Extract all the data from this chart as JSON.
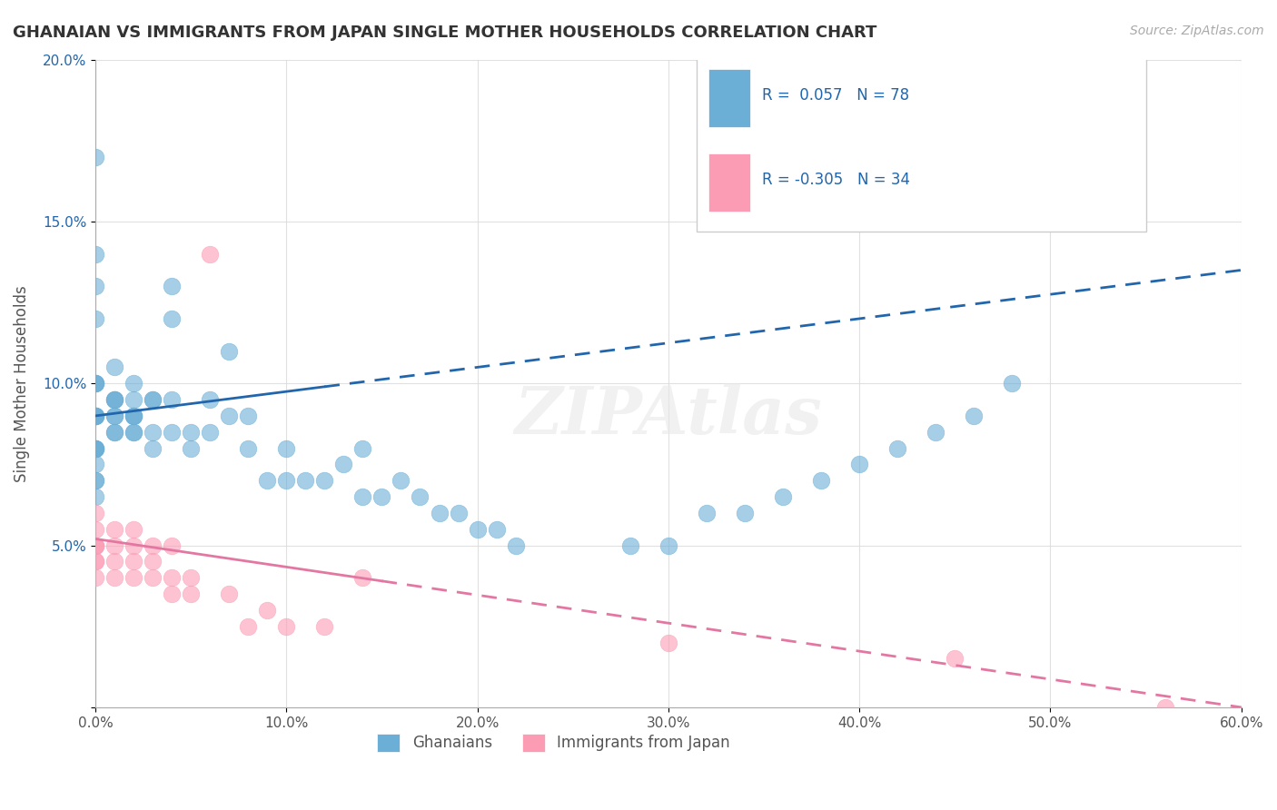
{
  "title": "GHANAIAN VS IMMIGRANTS FROM JAPAN SINGLE MOTHER HOUSEHOLDS CORRELATION CHART",
  "source": "Source: ZipAtlas.com",
  "xlabel": "",
  "ylabel": "Single Mother Households",
  "legend_labels": [
    "Ghanaians",
    "Immigrants from Japan"
  ],
  "blue_R": 0.057,
  "blue_N": 78,
  "pink_R": -0.305,
  "pink_N": 34,
  "xlim": [
    0.0,
    0.6
  ],
  "ylim": [
    0.0,
    0.2
  ],
  "xticks": [
    0.0,
    0.1,
    0.2,
    0.3,
    0.4,
    0.5,
    0.6
  ],
  "yticks": [
    0.0,
    0.05,
    0.1,
    0.15,
    0.2
  ],
  "xticklabels": [
    "0.0%",
    "10.0%",
    "20.0%",
    "30.0%",
    "40.0%",
    "50.0%",
    "60.0%"
  ],
  "yticklabels": [
    "",
    "5.0%",
    "10.0%",
    "15.0%",
    "20.0%"
  ],
  "blue_color": "#6baed6",
  "pink_color": "#fc9cb4",
  "blue_line_color": "#2166ac",
  "pink_line_color": "#e377a2",
  "background_color": "#ffffff",
  "grid_color": "#dddddd",
  "title_color": "#333333",
  "blue_scatter_x": [
    0.0,
    0.0,
    0.0,
    0.0,
    0.0,
    0.0,
    0.0,
    0.0,
    0.0,
    0.0,
    0.0,
    0.0,
    0.0,
    0.0,
    0.0,
    0.0,
    0.0,
    0.0,
    0.0,
    0.0,
    0.01,
    0.01,
    0.01,
    0.01,
    0.01,
    0.01,
    0.01,
    0.01,
    0.02,
    0.02,
    0.02,
    0.02,
    0.02,
    0.02,
    0.02,
    0.03,
    0.03,
    0.03,
    0.03,
    0.04,
    0.04,
    0.04,
    0.04,
    0.05,
    0.05,
    0.06,
    0.06,
    0.07,
    0.07,
    0.08,
    0.08,
    0.09,
    0.1,
    0.1,
    0.11,
    0.12,
    0.13,
    0.14,
    0.14,
    0.15,
    0.16,
    0.17,
    0.18,
    0.19,
    0.2,
    0.21,
    0.22,
    0.28,
    0.3,
    0.32,
    0.34,
    0.36,
    0.38,
    0.4,
    0.42,
    0.44,
    0.46,
    0.48
  ],
  "blue_scatter_y": [
    0.17,
    0.13,
    0.14,
    0.12,
    0.09,
    0.1,
    0.09,
    0.09,
    0.08,
    0.08,
    0.09,
    0.1,
    0.1,
    0.09,
    0.08,
    0.08,
    0.07,
    0.075,
    0.07,
    0.065,
    0.095,
    0.105,
    0.095,
    0.085,
    0.09,
    0.09,
    0.095,
    0.085,
    0.09,
    0.085,
    0.09,
    0.085,
    0.1,
    0.09,
    0.095,
    0.095,
    0.095,
    0.08,
    0.085,
    0.13,
    0.12,
    0.095,
    0.085,
    0.085,
    0.08,
    0.095,
    0.085,
    0.11,
    0.09,
    0.09,
    0.08,
    0.07,
    0.08,
    0.07,
    0.07,
    0.07,
    0.075,
    0.08,
    0.065,
    0.065,
    0.07,
    0.065,
    0.06,
    0.06,
    0.055,
    0.055,
    0.05,
    0.05,
    0.05,
    0.06,
    0.06,
    0.065,
    0.07,
    0.075,
    0.08,
    0.085,
    0.09,
    0.1
  ],
  "pink_scatter_x": [
    0.0,
    0.0,
    0.0,
    0.0,
    0.0,
    0.0,
    0.0,
    0.0,
    0.01,
    0.01,
    0.01,
    0.01,
    0.02,
    0.02,
    0.02,
    0.02,
    0.03,
    0.03,
    0.03,
    0.04,
    0.04,
    0.04,
    0.05,
    0.05,
    0.06,
    0.07,
    0.08,
    0.09,
    0.1,
    0.12,
    0.14,
    0.3,
    0.45,
    0.56
  ],
  "pink_scatter_y": [
    0.05,
    0.05,
    0.045,
    0.055,
    0.05,
    0.045,
    0.04,
    0.06,
    0.055,
    0.05,
    0.045,
    0.04,
    0.055,
    0.05,
    0.045,
    0.04,
    0.05,
    0.045,
    0.04,
    0.05,
    0.04,
    0.035,
    0.035,
    0.04,
    0.14,
    0.035,
    0.025,
    0.03,
    0.025,
    0.025,
    0.04,
    0.02,
    0.015,
    0.0
  ],
  "blue_line_x": [
    0.0,
    0.6
  ],
  "blue_line_y_start": 0.09,
  "blue_line_y_end": 0.135,
  "blue_line_solid_end": 0.12,
  "pink_line_x": [
    0.0,
    0.6
  ],
  "pink_line_y_start": 0.052,
  "pink_line_y_end": 0.0,
  "pink_line_solid_end": 0.15
}
